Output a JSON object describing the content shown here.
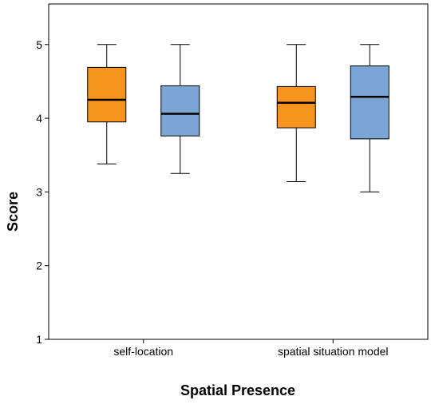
{
  "chart_data": {
    "type": "box",
    "title": "",
    "xlabel": "Spatial Presence",
    "ylabel": "Score",
    "ylim": [
      1,
      5.55
    ],
    "yticks": [
      1,
      2,
      3,
      4,
      5
    ],
    "grid": false,
    "legend": "none",
    "categories": [
      "self-location",
      "spatial situation model"
    ],
    "series": [
      {
        "color": "#f7941d",
        "boxes": [
          {
            "min": 3.38,
            "q1": 3.95,
            "median": 4.25,
            "q3": 4.69,
            "max": 5.0
          },
          {
            "min": 3.14,
            "q1": 3.87,
            "median": 4.21,
            "q3": 4.43,
            "max": 5.0
          }
        ]
      },
      {
        "color": "#7aa6d6",
        "boxes": [
          {
            "min": 3.25,
            "q1": 3.76,
            "median": 4.06,
            "q3": 4.44,
            "max": 5.0
          },
          {
            "min": 3.0,
            "q1": 3.72,
            "median": 4.29,
            "q3": 4.71,
            "max": 5.0
          }
        ]
      }
    ]
  }
}
